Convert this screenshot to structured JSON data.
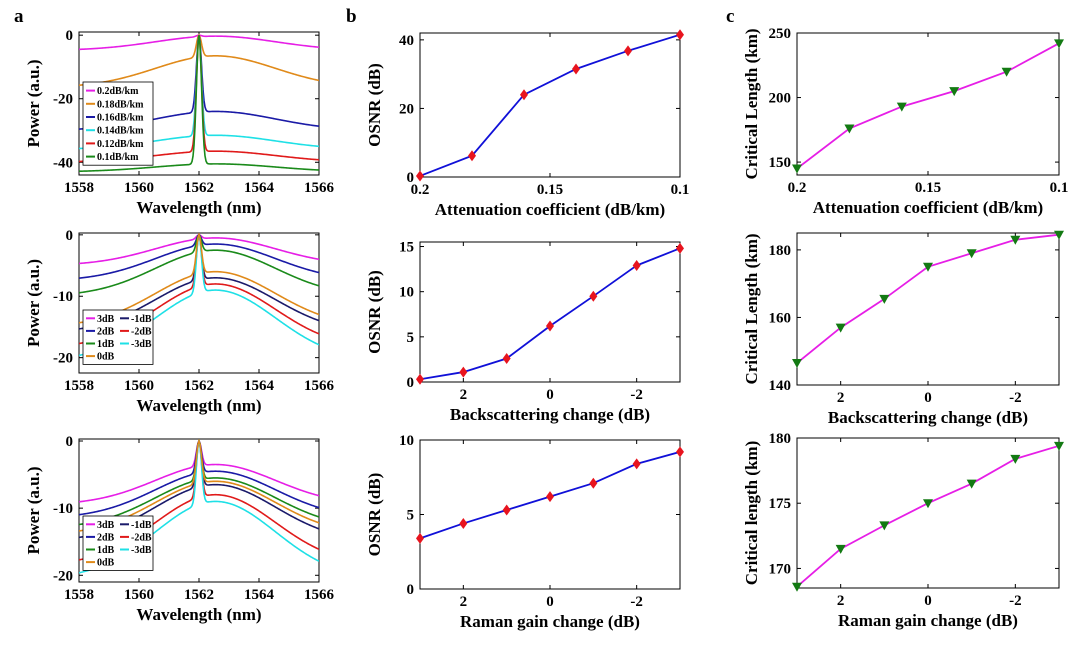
{
  "panel_letters": [
    "a",
    "b",
    "c"
  ],
  "colors": {
    "axis": "#000000",
    "blue_line": "#1010d8",
    "red_marker": "#e8141e",
    "magenta_line": "#e61ee6",
    "green_marker": "#137a13",
    "series": [
      "#e61ee6",
      "#e08a1a",
      "#1a1aa6",
      "#1ee0e6",
      "#e01a1a",
      "#1a8a1a"
    ]
  },
  "chart_data": [
    {
      "id": "a1",
      "type": "line",
      "panel": "a",
      "xlabel": "Wavelength (nm)",
      "ylabel": "Power (a.u.)",
      "xlim": [
        1558,
        1566
      ],
      "ylim": [
        -44,
        1
      ],
      "xticks": [
        1558,
        1560,
        1562,
        1564,
        1566
      ],
      "xtick_labels": [
        "1558",
        "1560",
        "1562",
        "1564",
        "1566"
      ],
      "yticks": [
        -40,
        -20,
        0
      ],
      "ytick_labels": [
        "-40",
        "-20",
        "0"
      ],
      "legend_position": "center-left",
      "legend_columns": 1,
      "series": [
        {
          "name": "0.2dB/km",
          "color": "#e61ee6",
          "base": -0.3,
          "floor": -4.8,
          "peak": 0
        },
        {
          "name": "0.18dB/km",
          "color": "#e08a1a",
          "base": -6.5,
          "floor": -16.5,
          "peak": 0
        },
        {
          "name": "0.16dB/km",
          "color": "#1a1aa6",
          "base": -24,
          "floor": -30,
          "peak": 0
        },
        {
          "name": "0.14dB/km",
          "color": "#1ee0e6",
          "base": -31.5,
          "floor": -36,
          "peak": 0
        },
        {
          "name": "0.12dB/km",
          "color": "#e01a1a",
          "base": -36.5,
          "floor": -40,
          "peak": 0
        },
        {
          "name": "0.1dB/km",
          "color": "#1a8a1a",
          "base": -40.5,
          "floor": -43,
          "peak": 0
        }
      ]
    },
    {
      "id": "a2",
      "type": "line",
      "panel": "a",
      "xlabel": "Wavelength (nm)",
      "ylabel": "Power (a.u.)",
      "xlim": [
        1558,
        1566
      ],
      "ylim": [
        -22.5,
        0.3
      ],
      "xticks": [
        1558,
        1560,
        1562,
        1564,
        1566
      ],
      "xtick_labels": [
        "1558",
        "1560",
        "1562",
        "1564",
        "1566"
      ],
      "yticks": [
        -20,
        -10,
        0
      ],
      "ytick_labels": [
        "-20",
        "-10",
        "0"
      ],
      "legend_position": "bottom-left",
      "legend_columns": 2,
      "series": [
        {
          "name": "3dB",
          "color": "#e61ee6",
          "base": -0.5,
          "floor": -5,
          "peak": 0
        },
        {
          "name": "-1dB",
          "color": "#1a1a6a",
          "base": -7,
          "floor": -16,
          "peak": 0
        },
        {
          "name": "2dB",
          "color": "#1a1aa6",
          "base": -1.5,
          "floor": -7.5,
          "peak": 0
        },
        {
          "name": "-2dB",
          "color": "#e01a1a",
          "base": -8,
          "floor": -18.5,
          "peak": 0
        },
        {
          "name": "1dB",
          "color": "#1a8a1a",
          "base": -2.5,
          "floor": -10,
          "peak": 0
        },
        {
          "name": "-3dB",
          "color": "#1ee0e6",
          "base": -9,
          "floor": -20.5,
          "peak": 0
        },
        {
          "name": "0dB",
          "color": "#e08a1a",
          "base": -6,
          "floor": -15,
          "peak": 0
        }
      ]
    },
    {
      "id": "a3",
      "type": "line",
      "panel": "a",
      "xlabel": "Wavelength (nm)",
      "ylabel": "Power (a.u.)",
      "xlim": [
        1558,
        1566
      ],
      "ylim": [
        -21,
        0.3
      ],
      "xticks": [
        1558,
        1560,
        1562,
        1564,
        1566
      ],
      "xtick_labels": [
        "1558",
        "1560",
        "1562",
        "1564",
        "1566"
      ],
      "yticks": [
        -20,
        -10,
        0
      ],
      "ytick_labels": [
        "-20",
        "-10",
        "0"
      ],
      "legend_position": "bottom-left",
      "legend_columns": 2,
      "series": [
        {
          "name": "3dB",
          "color": "#e61ee6",
          "base": -3.5,
          "floor": -9.5,
          "peak": 0
        },
        {
          "name": "-1dB",
          "color": "#1a1a6a",
          "base": -6.5,
          "floor": -15,
          "peak": 0
        },
        {
          "name": "2dB",
          "color": "#1a1aa6",
          "base": -4.5,
          "floor": -11.5,
          "peak": 0
        },
        {
          "name": "-2dB",
          "color": "#e01a1a",
          "base": -8,
          "floor": -18.5,
          "peak": 0
        },
        {
          "name": "1dB",
          "color": "#1a8a1a",
          "base": -5.5,
          "floor": -13,
          "peak": 0
        },
        {
          "name": "-3dB",
          "color": "#1ee0e6",
          "base": -9,
          "floor": -20.5,
          "peak": 0
        },
        {
          "name": "0dB",
          "color": "#e08a1a",
          "base": -6,
          "floor": -14,
          "peak": 0
        }
      ]
    },
    {
      "id": "b1",
      "type": "line",
      "panel": "b",
      "xlabel": "Attenuation coefficient (dB/km)",
      "ylabel": "OSNR (dB)",
      "xlim": [
        0.2,
        0.1
      ],
      "ylim": [
        0,
        42
      ],
      "xticks": [
        0.2,
        0.15,
        0.1
      ],
      "xtick_labels": [
        "0.2",
        "0.15",
        "0.1"
      ],
      "yticks": [
        0,
        20,
        40
      ],
      "ytick_labels": [
        "0",
        "20",
        "40"
      ],
      "x": [
        0.2,
        0.18,
        0.16,
        0.14,
        0.12,
        0.1
      ],
      "values": [
        0.3,
        6.2,
        24,
        31.5,
        36.8,
        41.5
      ]
    },
    {
      "id": "b2",
      "type": "line",
      "panel": "b",
      "xlabel": "Backscattering change (dB)",
      "ylabel": "OSNR (dB)",
      "xlim": [
        3,
        -3
      ],
      "ylim": [
        0,
        15.5
      ],
      "xticks": [
        2,
        0,
        -2
      ],
      "xtick_labels": [
        "2",
        "0",
        "-2"
      ],
      "yticks": [
        0,
        5,
        10,
        15
      ],
      "ytick_labels": [
        "0",
        "5",
        "10",
        "15"
      ],
      "x": [
        3,
        2,
        1,
        0,
        -1,
        -2,
        -3
      ],
      "values": [
        0.3,
        1.1,
        2.6,
        6.2,
        9.5,
        12.9,
        14.8
      ]
    },
    {
      "id": "b3",
      "type": "line",
      "panel": "b",
      "xlabel": "Raman gain change (dB)",
      "ylabel": "OSNR (dB)",
      "xlim": [
        3,
        -3
      ],
      "ylim": [
        0,
        10
      ],
      "xticks": [
        2,
        0,
        -2
      ],
      "xtick_labels": [
        "2",
        "0",
        "-2"
      ],
      "yticks": [
        0,
        5,
        10
      ],
      "ytick_labels": [
        "0",
        "5",
        "10"
      ],
      "x": [
        3,
        2,
        1,
        0,
        -1,
        -2,
        -3
      ],
      "values": [
        3.4,
        4.4,
        5.3,
        6.2,
        7.1,
        8.4,
        9.2
      ]
    },
    {
      "id": "c1",
      "type": "line",
      "panel": "c",
      "xlabel": "Attenuation coefficient (dB/km)",
      "ylabel": "Critical Length (km)",
      "xlim": [
        0.2,
        0.1
      ],
      "ylim": [
        140,
        250
      ],
      "xticks": [
        0.2,
        0.15,
        0.1
      ],
      "xtick_labels": [
        "0.2",
        "0.15",
        "0.1"
      ],
      "yticks": [
        150,
        200,
        250
      ],
      "ytick_labels": [
        "150",
        "200",
        "250"
      ],
      "x": [
        0.2,
        0.18,
        0.16,
        0.14,
        0.12,
        0.1
      ],
      "values": [
        145,
        176,
        193,
        205,
        220,
        242
      ]
    },
    {
      "id": "c2",
      "type": "line",
      "panel": "c",
      "xlabel": "Backscattering change (dB)",
      "ylabel": "Critical Length (km)",
      "xlim": [
        3,
        -3
      ],
      "ylim": [
        140,
        185
      ],
      "xticks": [
        2,
        0,
        -2
      ],
      "xtick_labels": [
        "2",
        "0",
        "-2"
      ],
      "yticks": [
        140,
        160,
        180
      ],
      "ytick_labels": [
        "140",
        "160",
        "180"
      ],
      "x": [
        3,
        2,
        1,
        0,
        -1,
        -2,
        -3
      ],
      "values": [
        146.5,
        157,
        165.5,
        175,
        179,
        183,
        184.5
      ]
    },
    {
      "id": "c3",
      "type": "line",
      "panel": "c",
      "xlabel": "Raman gain change (dB)",
      "ylabel": "Critical length (km)",
      "xlim": [
        3,
        -3
      ],
      "ylim": [
        168.5,
        180
      ],
      "xticks": [
        2,
        0,
        -2
      ],
      "xtick_labels": [
        "2",
        "0",
        "-2"
      ],
      "yticks": [
        170,
        175,
        180
      ],
      "ytick_labels": [
        "170",
        "175",
        "180"
      ],
      "x": [
        3,
        2,
        1,
        0,
        -1,
        -2,
        -3
      ],
      "values": [
        168.6,
        171.5,
        173.3,
        175,
        176.5,
        178.4,
        179.4
      ]
    }
  ]
}
